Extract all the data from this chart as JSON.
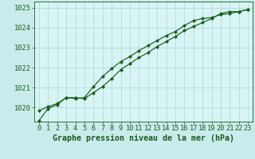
{
  "title": "Graphe pression niveau de la mer (hPa)",
  "bg_color": "#c8ecec",
  "plot_bg_color": "#d8f4f4",
  "line_color": "#1a5c1a",
  "grid_color": "#a8d8d8",
  "xlim": [
    -0.5,
    23.5
  ],
  "ylim": [
    1019.3,
    1025.3
  ],
  "yticks": [
    1020,
    1021,
    1022,
    1023,
    1024,
    1025
  ],
  "xticks": [
    0,
    1,
    2,
    3,
    4,
    5,
    6,
    7,
    8,
    9,
    10,
    11,
    12,
    13,
    14,
    15,
    16,
    17,
    18,
    19,
    20,
    21,
    22,
    23
  ],
  "series1_x": [
    0,
    1,
    2,
    3,
    4,
    5,
    6,
    7,
    8,
    9,
    10,
    11,
    12,
    13,
    14,
    15,
    16,
    17,
    18,
    19,
    20,
    21,
    22,
    23
  ],
  "series1_y": [
    1019.85,
    1020.05,
    1020.2,
    1020.5,
    1020.5,
    1020.45,
    1020.75,
    1021.05,
    1021.45,
    1021.9,
    1022.2,
    1022.5,
    1022.75,
    1023.05,
    1023.3,
    1023.55,
    1023.85,
    1024.05,
    1024.25,
    1024.45,
    1024.7,
    1024.8,
    1024.8,
    1024.9
  ],
  "series2_x": [
    0,
    1,
    2,
    3,
    4,
    5,
    6,
    7,
    8,
    9,
    10,
    11,
    12,
    13,
    14,
    15,
    16,
    17,
    18,
    19,
    20,
    21,
    22,
    23
  ],
  "series2_y": [
    1019.35,
    1019.95,
    1020.15,
    1020.5,
    1020.45,
    1020.5,
    1021.05,
    1021.55,
    1021.95,
    1022.3,
    1022.55,
    1022.85,
    1023.1,
    1023.35,
    1023.6,
    1023.8,
    1024.1,
    1024.35,
    1024.45,
    1024.5,
    1024.65,
    1024.7,
    1024.8,
    1024.9
  ],
  "tick_fontsize": 6.2,
  "title_fontsize": 7.2,
  "marker": "D",
  "markersize": 2.2,
  "linewidth": 0.85
}
